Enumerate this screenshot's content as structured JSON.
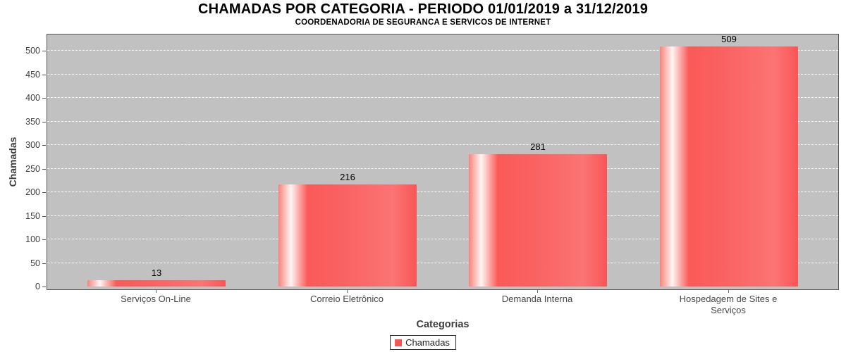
{
  "chart": {
    "title": "CHAMADAS POR CATEGORIA - PERIODO 01/01/2019 a 31/12/2019",
    "subtitle": "COORDENADORIA DE SEGURANCA E SERVICOS DE INTERNET"
  },
  "chart_data": {
    "type": "bar",
    "title": "CHAMADAS POR CATEGORIA - PERIODO 01/01/2019 a 31/12/2019",
    "subtitle": "COORDENADORIA DE SEGURANCA E SERVICOS DE INTERNET",
    "categories": [
      "Serviços On-Line",
      "Correio Eletrônico",
      "Demanda Interna",
      "Hospedagem de Sites e Serviços"
    ],
    "series": [
      {
        "name": "Chamadas",
        "values": [
          13,
          216,
          281,
          509
        ]
      }
    ],
    "value_labels": [
      "13",
      "216",
      "281",
      "509"
    ],
    "xlabel": "Categorias",
    "ylabel": "Chamadas",
    "ylim": [
      0,
      500
    ],
    "yticks": [
      0,
      50,
      100,
      150,
      200,
      250,
      300,
      350,
      400,
      450,
      500
    ],
    "grid": "horizontal, white dashed, on",
    "legend_position": "bottom-center",
    "colors": {
      "bar_base": "#fa5a5a",
      "bar_highlight": "#fef5f2",
      "plot_background": "#c1c1c1",
      "plot_border": "#545454",
      "gridline": "#ffffff",
      "axis_text": "#3d3d3d",
      "title_text": "#000000"
    }
  },
  "legend": {
    "items": [
      {
        "label": "Chamadas",
        "color": "#f95353"
      }
    ]
  }
}
